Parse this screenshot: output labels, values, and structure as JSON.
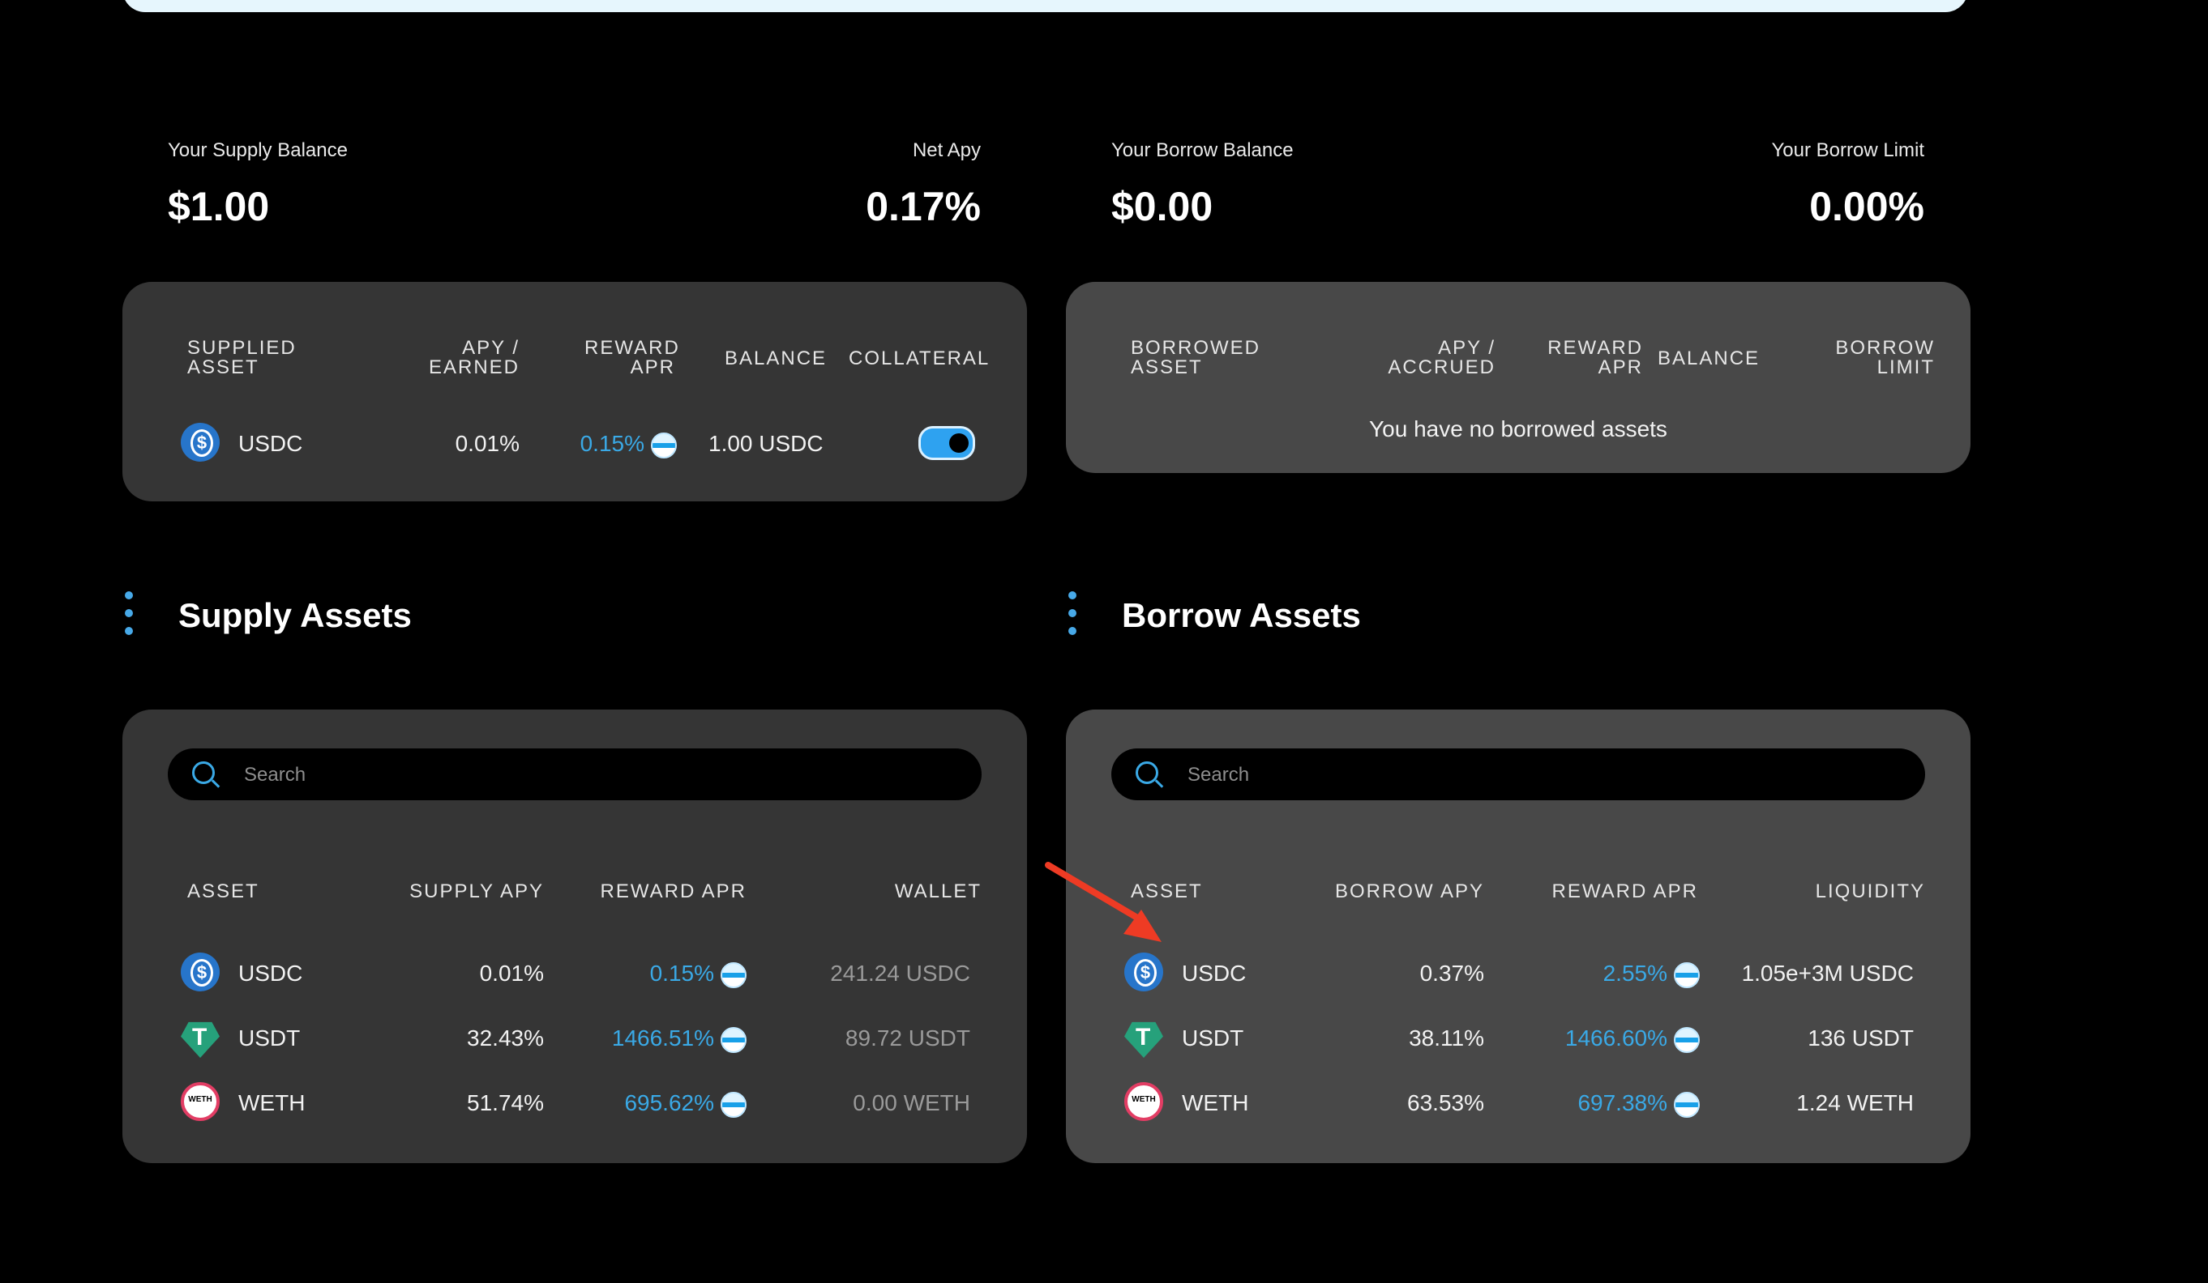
{
  "summary": {
    "supply_balance_label": "Your Supply Balance",
    "supply_balance_value": "$1.00",
    "net_apy_label": "Net Apy",
    "net_apy_value": "0.17%",
    "borrow_balance_label": "Your Borrow Balance",
    "borrow_balance_value": "$0.00",
    "borrow_limit_label": "Your Borrow Limit",
    "borrow_limit_value": "0.00%"
  },
  "supplied": {
    "headers": [
      "SUPPLIED\nASSET",
      "APY /\nEARNED",
      "REWARD\nAPR",
      "BALANCE",
      "COLLATERAL"
    ],
    "row": {
      "asset": "USDC",
      "apy": "0.01%",
      "reward": "0.15%",
      "balance": "1.00 USDC"
    }
  },
  "borrowed": {
    "headers": [
      "BORROWED\nASSET",
      "APY /\nACCRUED",
      "REWARD\nAPR",
      "BALANCE",
      "BORROW\nLIMIT"
    ],
    "empty": "You have no borrowed assets"
  },
  "supply_assets": {
    "title": "Supply Assets",
    "search_placeholder": "Search",
    "headers": [
      "ASSET",
      "SUPPLY APY",
      "REWARD APR",
      "WALLET"
    ],
    "rows": [
      {
        "asset": "USDC",
        "apy": "0.01%",
        "reward": "0.15%",
        "wallet": "241.24 USDC"
      },
      {
        "asset": "USDT",
        "apy": "32.43%",
        "reward": "1466.51%",
        "wallet": "89.72 USDT"
      },
      {
        "asset": "WETH",
        "apy": "51.74%",
        "reward": "695.62%",
        "wallet": "0.00 WETH"
      }
    ]
  },
  "borrow_assets": {
    "title": "Borrow Assets",
    "search_placeholder": "Search",
    "headers": [
      "ASSET",
      "BORROW APY",
      "REWARD APR",
      "LIQUIDITY"
    ],
    "rows": [
      {
        "asset": "USDC",
        "apy": "0.37%",
        "reward": "2.55%",
        "liquidity": "1.05e+3M USDC"
      },
      {
        "asset": "USDT",
        "apy": "38.11%",
        "reward": "1466.60%",
        "liquidity": "136 USDT"
      },
      {
        "asset": "WETH",
        "apy": "63.53%",
        "reward": "697.38%",
        "liquidity": "1.24 WETH"
      }
    ]
  },
  "colors": {
    "accent": "#3aa9e6",
    "card_dark": "#353535",
    "card_mid": "#484848",
    "arrow": "#ee3b24"
  },
  "icons": [
    "usdc-icon",
    "usdt-icon",
    "weth-icon",
    "reward-icon",
    "search-icon",
    "toggle-switch"
  ]
}
